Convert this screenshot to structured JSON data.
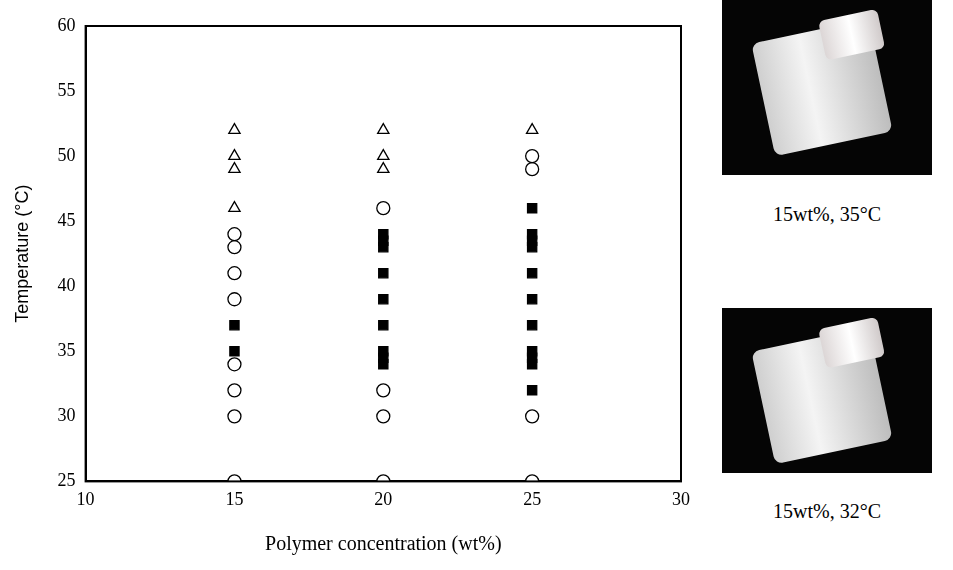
{
  "chart_data": {
    "type": "scatter",
    "x_label": "Polymer concentration (wt%)",
    "y_label": "Temperature (°C)",
    "xlim": [
      10,
      30
    ],
    "xticks": [
      10,
      15,
      20,
      25,
      30
    ],
    "ylim": [
      25,
      60
    ],
    "yticks": [
      25,
      30,
      35,
      40,
      45,
      50,
      55,
      60
    ],
    "grid": false,
    "series": [
      {
        "marker": "circle_open",
        "color": "#000000",
        "x": [
          15,
          15,
          15,
          15,
          15,
          15,
          15,
          15,
          20,
          20,
          20,
          20,
          25,
          25,
          25,
          25
        ],
        "values": [
          25,
          30,
          32,
          34,
          39,
          41,
          43,
          44,
          25,
          30,
          32,
          46,
          25,
          30,
          49,
          50
        ]
      },
      {
        "marker": "square",
        "color": "#000000",
        "x": [
          15,
          15,
          20,
          20,
          20,
          20,
          20,
          20,
          20,
          20,
          20,
          25,
          25,
          25,
          25,
          25,
          25,
          25,
          25,
          25,
          25,
          25
        ],
        "values": [
          35,
          37,
          34,
          34.5,
          35,
          37,
          39,
          41,
          43,
          43.5,
          44,
          32,
          34,
          34.5,
          35,
          37,
          39,
          41,
          43,
          43.5,
          44,
          46
        ]
      },
      {
        "marker": "triangle_open",
        "color": "#000000",
        "x": [
          15,
          15,
          15,
          15,
          20,
          20,
          20,
          25
        ],
        "values": [
          46,
          49,
          50,
          52,
          49,
          50,
          52,
          52
        ]
      }
    ]
  },
  "photos": [
    {
      "caption": "15wt%, 35°C"
    },
    {
      "caption": "15wt%, 32°C"
    }
  ]
}
